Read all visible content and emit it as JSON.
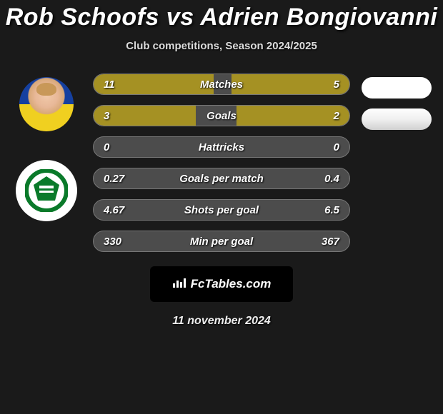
{
  "header": {
    "title": "Rob Schoofs vs Adrien Bongiovanni",
    "subtitle": "Club competitions, Season 2024/2025"
  },
  "colors": {
    "background": "#1a1a1a",
    "bar_track": "#4c4c4c",
    "bar_fill": "#a59123",
    "text": "#ffffff",
    "pill": "#ffffff",
    "badge_bg": "#000000"
  },
  "rows": [
    {
      "label": "Matches",
      "left_val": "11",
      "right_val": "5",
      "left_pct": 47,
      "right_pct": 46
    },
    {
      "label": "Goals",
      "left_val": "3",
      "right_val": "2",
      "left_pct": 40,
      "right_pct": 44
    },
    {
      "label": "Hattricks",
      "left_val": "0",
      "right_val": "0",
      "left_pct": 0,
      "right_pct": 0
    },
    {
      "label": "Goals per match",
      "left_val": "0.27",
      "right_val": "0.4",
      "left_pct": 0,
      "right_pct": 0
    },
    {
      "label": "Shots per goal",
      "left_val": "4.67",
      "right_val": "6.5",
      "left_pct": 0,
      "right_pct": 0
    },
    {
      "label": "Min per goal",
      "left_val": "330",
      "right_val": "367",
      "left_pct": 0,
      "right_pct": 0
    }
  ],
  "right_pills_count": 2,
  "footer": {
    "site": "FcTables.com",
    "date": "11 november 2024"
  }
}
